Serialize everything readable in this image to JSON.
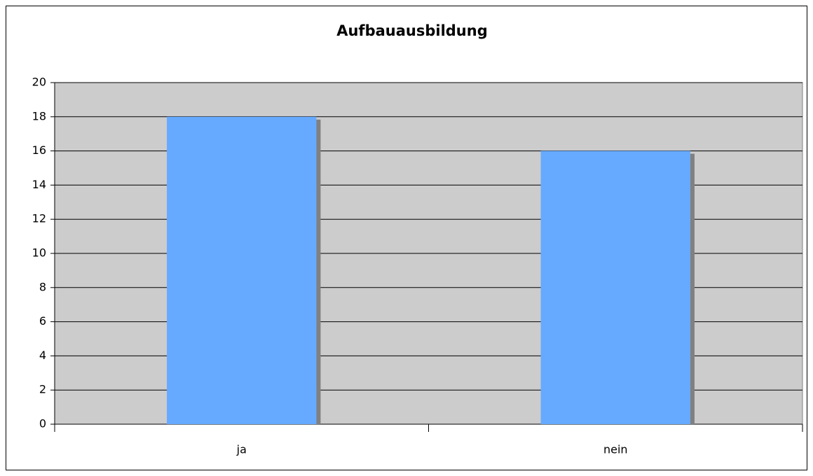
{
  "chart_data": {
    "type": "bar",
    "title": "Aufbauausbildung",
    "categories": [
      "ja",
      "nein"
    ],
    "values": [
      18,
      16
    ],
    "color": "#66aaff",
    "ylim": [
      0,
      20
    ],
    "yticks": [
      0,
      2,
      4,
      6,
      8,
      10,
      12,
      14,
      16,
      18,
      20
    ],
    "grid": true
  }
}
